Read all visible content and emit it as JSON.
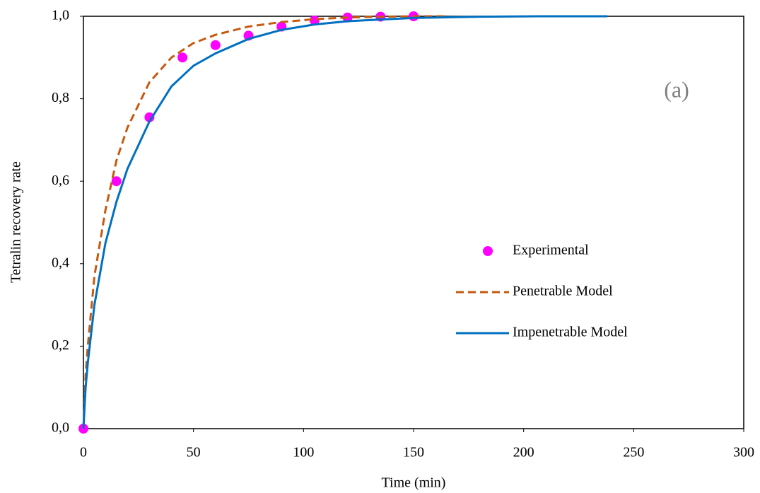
{
  "chart_data": {
    "type": "line",
    "xlabel": "Time (min)",
    "ylabel": "Tetralin recovery rate",
    "annotation": "(a)",
    "xlim": [
      0,
      300
    ],
    "xticks": [
      0,
      50,
      100,
      150,
      200,
      250,
      300
    ],
    "ylim": [
      0,
      1
    ],
    "yticks": [
      {
        "value": 0,
        "label": "0,0"
      },
      {
        "value": 0.2,
        "label": "0,2"
      },
      {
        "value": 0.4,
        "label": "0,4"
      },
      {
        "value": 0.6,
        "label": "0,6"
      },
      {
        "value": 0.8,
        "label": "0,8"
      },
      {
        "value": 1,
        "label": "1,0"
      }
    ],
    "grid": false,
    "legend": "right",
    "series": [
      {
        "name": "Experimental",
        "color": "#ff00ff",
        "marker": "circle",
        "x": [
          0,
          15,
          30,
          45,
          60,
          75,
          90,
          105,
          120,
          135,
          150
        ],
        "values": [
          0,
          0.6,
          0.755,
          0.9,
          0.93,
          0.953,
          0.975,
          0.99,
          0.997,
          0.999,
          1.0
        ]
      },
      {
        "name": "Penetrable Model",
        "color": "#c55a11",
        "dash": true,
        "x": [
          0,
          1,
          2,
          5,
          10,
          15,
          20,
          30,
          40,
          50,
          60,
          75,
          90,
          105,
          120,
          135,
          150,
          165
        ],
        "values": [
          0,
          0.13,
          0.2,
          0.37,
          0.53,
          0.65,
          0.73,
          0.84,
          0.9,
          0.935,
          0.955,
          0.975,
          0.986,
          0.993,
          0.997,
          0.999,
          1.0,
          1.0
        ]
      },
      {
        "name": "Impenetrable Model",
        "color": "#0070c0",
        "dash": false,
        "x": [
          0,
          1,
          2,
          5,
          10,
          15,
          20,
          30,
          40,
          50,
          60,
          75,
          90,
          105,
          120,
          150,
          180,
          210,
          238
        ],
        "values": [
          0,
          0.1,
          0.16,
          0.3,
          0.45,
          0.55,
          0.63,
          0.745,
          0.83,
          0.88,
          0.91,
          0.945,
          0.967,
          0.98,
          0.988,
          0.996,
          0.999,
          1.0,
          1.0
        ]
      }
    ]
  }
}
